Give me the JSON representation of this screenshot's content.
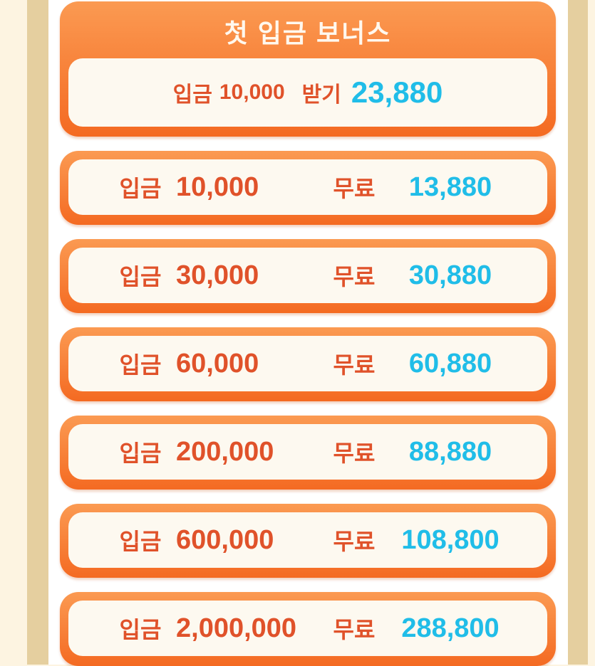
{
  "header": {
    "title": "첫 입금 보너스",
    "deposit_label": "입금",
    "deposit_amount": "10,000",
    "receive_label": "받기",
    "receive_amount": "23,880"
  },
  "rows": [
    {
      "deposit_label": "입금",
      "deposit": "10,000",
      "free_label": "무료",
      "bonus": "13,880"
    },
    {
      "deposit_label": "입금",
      "deposit": "30,000",
      "free_label": "무료",
      "bonus": "30,880"
    },
    {
      "deposit_label": "입금",
      "deposit": "60,000",
      "free_label": "무료",
      "bonus": "60,880"
    },
    {
      "deposit_label": "입금",
      "deposit": "200,000",
      "free_label": "무료",
      "bonus": "88,880"
    },
    {
      "deposit_label": "입금",
      "deposit": "600,000",
      "free_label": "무료",
      "bonus": "108,800"
    },
    {
      "deposit_label": "입금",
      "deposit": "2,000,000",
      "free_label": "무료",
      "bonus": "288,800"
    }
  ],
  "colors": {
    "accent": "#f46a22",
    "label": "#e0522a",
    "bonus": "#20bde8",
    "card_bg": "#fdf9f0"
  }
}
